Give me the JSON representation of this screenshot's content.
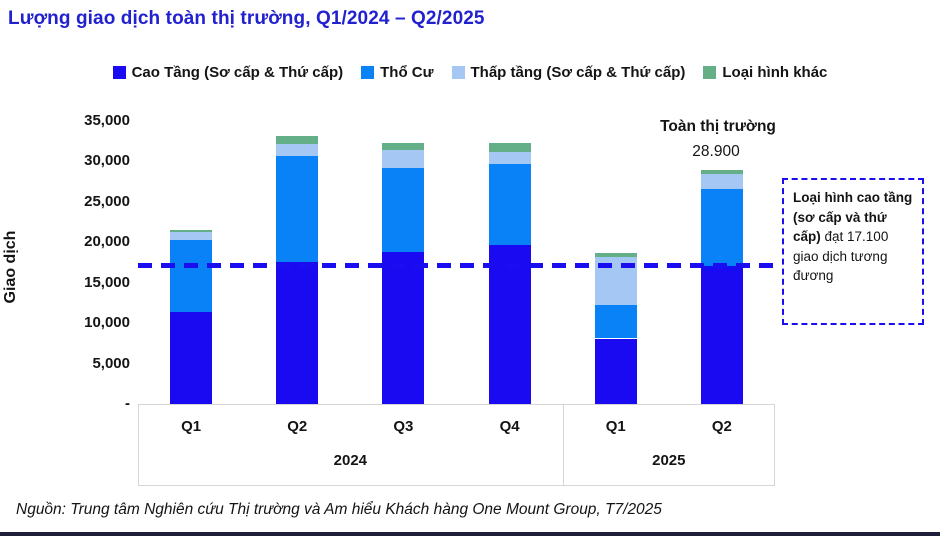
{
  "title": "Lượng giao dịch toàn thị trường, Q1/2024 – Q2/2025",
  "colors": {
    "title": "#2121d0",
    "cao_tang": "#1a0af2",
    "tho_cu": "#0a82f7",
    "thap_tang": "#a5c7f4",
    "khac": "#64af88",
    "dash": "#1a0df0",
    "axis_box_border": "#d6d6d6",
    "bottom_rule": "#1e1e38",
    "text": "#141414"
  },
  "legend": [
    {
      "label": "Cao Tầng (Sơ cấp & Thứ cấp)",
      "color": "#1a0af2"
    },
    {
      "label": "Thổ Cư",
      "color": "#0a82f7"
    },
    {
      "label": "Thấp tầng (Sơ cấp & Thứ cấp)",
      "color": "#a5c7f4"
    },
    {
      "label": "Loại hình khác",
      "color": "#64af88"
    }
  ],
  "chart_data": {
    "type": "bar",
    "stacked": true,
    "ylabel": "Giao dịch",
    "ylim": [
      0,
      35000
    ],
    "ytick_labels": [
      "35,000",
      "30,000",
      "25,000",
      "20,000",
      "15,000",
      "10,000",
      "5,000",
      "-"
    ],
    "categories": [
      "Q1",
      "Q2",
      "Q3",
      "Q4",
      "Q1",
      "Q2"
    ],
    "groups": [
      {
        "label": "2024",
        "span": 4
      },
      {
        "label": "2025",
        "span": 2
      }
    ],
    "series": [
      {
        "name": "Cao Tầng (Sơ cấp & Thứ cấp)",
        "color": "#1a0af2",
        "values": [
          11400,
          17600,
          18800,
          19700,
          8100,
          17100
        ]
      },
      {
        "name": "Thổ Cư",
        "color": "#0a82f7",
        "values": [
          8900,
          13100,
          10400,
          10000,
          4200,
          9500
        ]
      },
      {
        "name": "Thấp tầng (Sơ cấp & Thứ cấp)",
        "color": "#a5c7f4",
        "values": [
          1000,
          1500,
          2200,
          1500,
          5900,
          1800
        ]
      },
      {
        "name": "Loại hình khác",
        "color": "#64af88",
        "values": [
          200,
          1000,
          900,
          1100,
          500,
          500
        ]
      }
    ],
    "reference_line": {
      "value": 17100
    },
    "grid": false,
    "legend_position": "top"
  },
  "annotation": {
    "title": "Toàn thị trường",
    "value": "28.900"
  },
  "note_box": {
    "bold_text": "Loại hình cao tầng (sơ cấp và thứ cấp)",
    "rest_text": " đạt 17.100 giao dịch tương đương"
  },
  "source": "Nguồn: Trung tâm Nghiên cứu Thị trường và Am hiểu Khách hàng One Mount Group, T7/2025"
}
